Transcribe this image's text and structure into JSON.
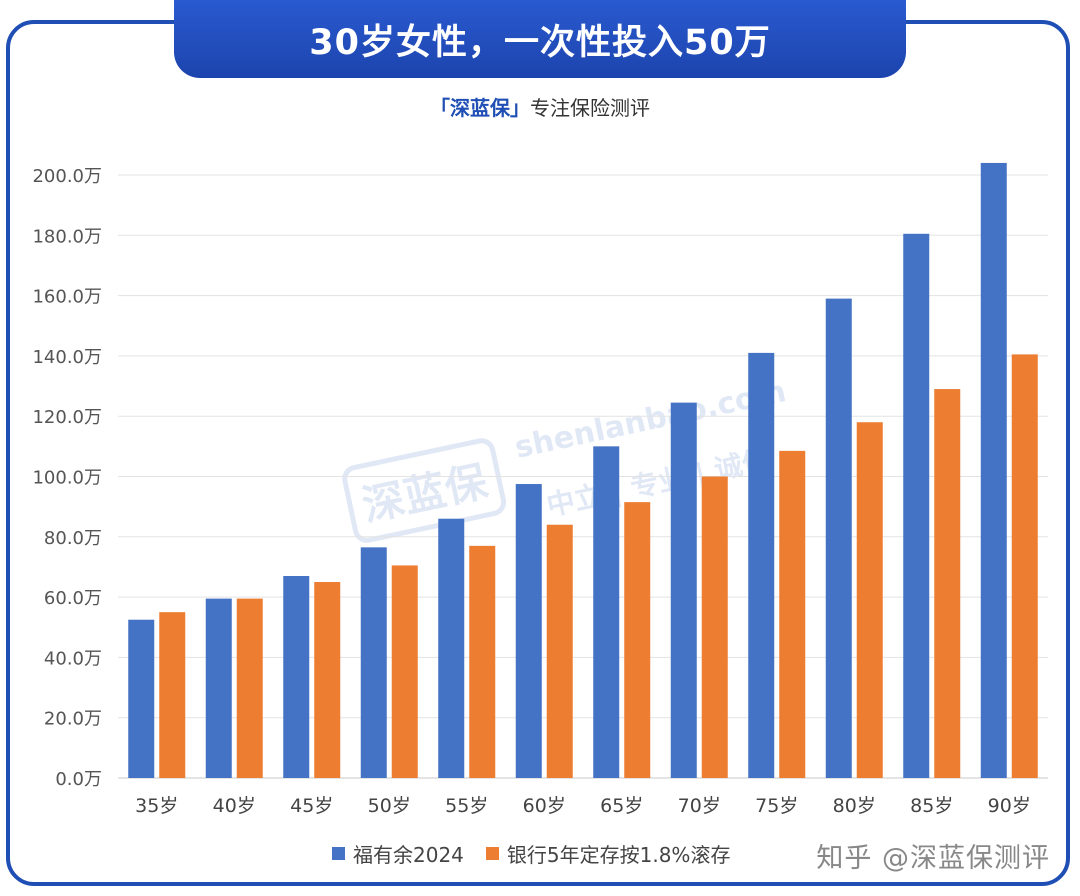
{
  "header": {
    "title": "30岁女性，一次性投入50万",
    "brand": "「深蓝保」",
    "tagline": "专注保险测评"
  },
  "watermark": {
    "logo": "深蓝保",
    "url": "shenlanbao.com",
    "motto": "中立 | 专业 | 诚信"
  },
  "footer": {
    "credit": "知乎 @深蓝保测评"
  },
  "colors": {
    "series1": "#4472c4",
    "series2": "#ed7d31",
    "frame": "#1f4fb4"
  },
  "chart_data": {
    "type": "bar",
    "categories": [
      "35岁",
      "40岁",
      "45岁",
      "50岁",
      "55岁",
      "60岁",
      "65岁",
      "70岁",
      "75岁",
      "80岁",
      "85岁",
      "90岁"
    ],
    "series": [
      {
        "name": "福有余2024",
        "values": [
          52.5,
          59.5,
          67.0,
          76.5,
          86.0,
          97.5,
          110.0,
          124.5,
          141.0,
          159.0,
          180.5,
          204.0
        ]
      },
      {
        "name": "银行5年定存按1.8%滚存",
        "values": [
          55.0,
          59.5,
          65.0,
          70.5,
          77.0,
          84.0,
          91.5,
          100.0,
          108.5,
          118.0,
          129.0,
          140.5
        ]
      }
    ],
    "yticks": [
      "0.0万",
      "20.0万",
      "40.0万",
      "60.0万",
      "80.0万",
      "100.0万",
      "120.0万",
      "140.0万",
      "160.0万",
      "180.0万",
      "200.0万"
    ],
    "ylim": [
      0,
      200
    ],
    "grid": true,
    "legend_position": "bottom"
  }
}
